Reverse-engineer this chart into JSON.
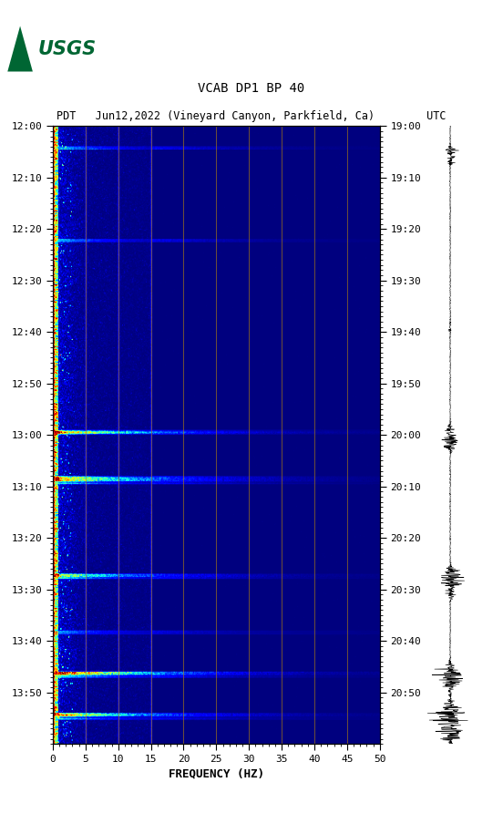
{
  "title_line1": "VCAB DP1 BP 40",
  "title_line2": "PDT   Jun12,2022 (Vineyard Canyon, Parkfield, Ca)        UTC",
  "xlabel": "FREQUENCY (HZ)",
  "freq_min": 0,
  "freq_max": 50,
  "freq_ticks": [
    0,
    5,
    10,
    15,
    20,
    25,
    30,
    35,
    40,
    45,
    50
  ],
  "pdt_times": [
    "12:00",
    "12:10",
    "12:20",
    "12:30",
    "12:40",
    "12:50",
    "13:00",
    "13:10",
    "13:20",
    "13:30",
    "13:40",
    "13:50"
  ],
  "utc_times": [
    "19:00",
    "19:10",
    "19:20",
    "19:30",
    "19:40",
    "19:50",
    "20:00",
    "20:10",
    "20:20",
    "20:30",
    "20:40",
    "20:50"
  ],
  "n_time_bins": 600,
  "n_freq_bins": 500,
  "background_color": "#ffffff",
  "spectrogram_cmap": "jet",
  "vertical_lines_freq": [
    5,
    10,
    15,
    20,
    25,
    30,
    35,
    40,
    45
  ],
  "vertical_line_color": "#b8860b",
  "usgs_green": "#006633",
  "font_family": "monospace",
  "font_size_title": 10,
  "font_size_labels": 9,
  "font_size_ticks": 8,
  "event_rows_weak": [
    20,
    21,
    22,
    110,
    111,
    112,
    295,
    296,
    297,
    298,
    299,
    340,
    341,
    342,
    343,
    344,
    345,
    346,
    347,
    435,
    436,
    437,
    438,
    439,
    490,
    491,
    492,
    493,
    530,
    531,
    532,
    533,
    534,
    535,
    570,
    571,
    572,
    573,
    574,
    575,
    576
  ],
  "event_rows_strong": [
    296,
    297,
    298,
    341,
    342,
    343,
    344,
    435,
    436,
    437,
    530,
    531,
    532,
    570,
    571,
    572
  ],
  "seis_events": [
    0.04,
    0.05,
    0.06,
    0.32,
    0.33,
    0.49,
    0.5,
    0.51,
    0.52,
    0.72,
    0.73,
    0.74,
    0.75,
    0.76,
    0.88,
    0.89,
    0.9,
    0.94,
    0.95,
    0.96,
    0.97,
    0.98,
    0.99
  ],
  "seis_amplitudes": [
    0.35,
    0.25,
    0.2,
    0.15,
    0.1,
    0.3,
    0.4,
    0.5,
    0.35,
    0.45,
    0.6,
    0.5,
    0.4,
    0.3,
    0.5,
    0.7,
    0.6,
    0.6,
    0.7,
    0.8,
    0.7,
    0.6,
    0.5
  ]
}
